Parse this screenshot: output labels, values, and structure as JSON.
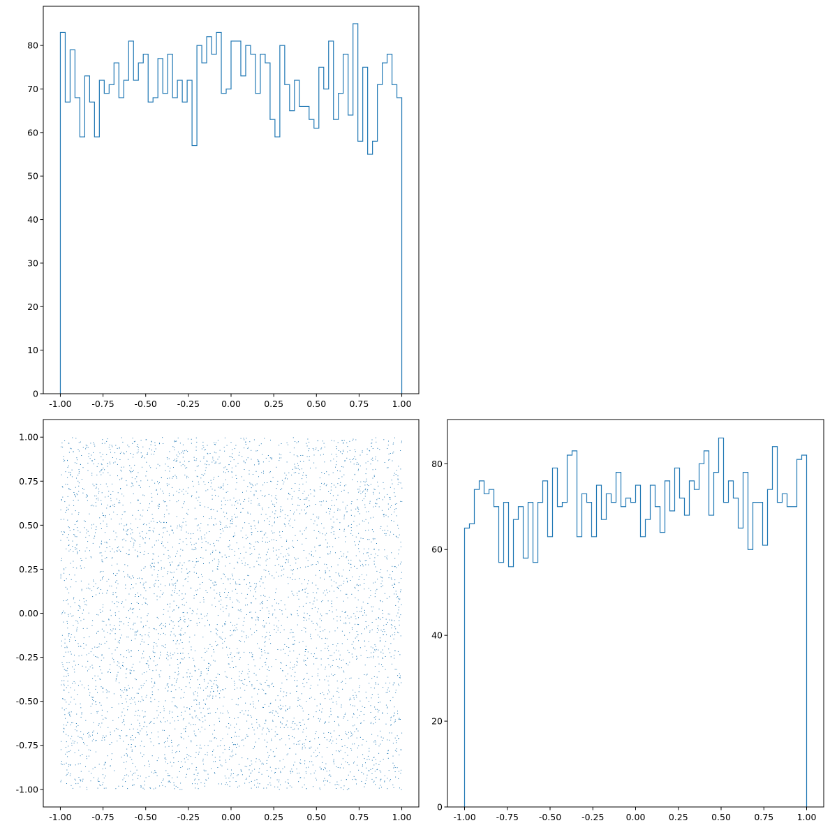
{
  "colors": {
    "series": "#1f77b4",
    "axes": "#000000",
    "background": "#ffffff"
  },
  "chart_data": [
    {
      "id": "top-left-histogram",
      "type": "histogram",
      "histtype": "step",
      "title": "",
      "xlabel": "",
      "ylabel": "",
      "xlim": [
        -1.1,
        1.1
      ],
      "ylim": [
        0,
        89
      ],
      "grid": false,
      "bin_range": [
        -1.0,
        1.0
      ],
      "counts": [
        83,
        67,
        79,
        68,
        59,
        73,
        67,
        59,
        72,
        69,
        71,
        76,
        68,
        72,
        81,
        72,
        76,
        78,
        67,
        68,
        77,
        69,
        78,
        68,
        72,
        67,
        72,
        57,
        80,
        76,
        82,
        78,
        83,
        69,
        70,
        81,
        81,
        73,
        80,
        78,
        69,
        78,
        76,
        63,
        59,
        80,
        71,
        65,
        72,
        66,
        66,
        63,
        61,
        75,
        70,
        81,
        63,
        69,
        78,
        64,
        85,
        58,
        75,
        55,
        58,
        71,
        76,
        78,
        71,
        68
      ],
      "xticks": [
        "-1.00",
        "-0.75",
        "-0.50",
        "-0.25",
        "0.00",
        "0.25",
        "0.50",
        "0.75",
        "1.00"
      ],
      "xtick_values": [
        -1.0,
        -0.75,
        -0.5,
        -0.25,
        0.0,
        0.25,
        0.5,
        0.75,
        1.0
      ],
      "yticks": [
        "0",
        "10",
        "20",
        "30",
        "40",
        "50",
        "60",
        "70",
        "80"
      ],
      "ytick_values": [
        0,
        10,
        20,
        30,
        40,
        50,
        60,
        70,
        80
      ]
    },
    {
      "id": "bottom-left-scatter",
      "type": "scatter",
      "title": "",
      "xlabel": "",
      "ylabel": "",
      "xlim": [
        -1.1,
        1.1
      ],
      "ylim": [
        -1.1,
        1.1
      ],
      "grid": false,
      "point_count": 5000,
      "x_range": [
        -1.0,
        1.0
      ],
      "y_range": [
        -1.0,
        1.0
      ],
      "marker": "pixel",
      "xticks": [
        "-1.00",
        "-0.75",
        "-0.50",
        "-0.25",
        "0.00",
        "0.25",
        "0.50",
        "0.75",
        "1.00"
      ],
      "xtick_values": [
        -1.0,
        -0.75,
        -0.5,
        -0.25,
        0.0,
        0.25,
        0.5,
        0.75,
        1.0
      ],
      "yticks": [
        "-1.00",
        "-0.75",
        "-0.50",
        "-0.25",
        "0.00",
        "0.25",
        "0.50",
        "0.75",
        "1.00"
      ],
      "ytick_values": [
        -1.0,
        -0.75,
        -0.5,
        -0.25,
        0.0,
        0.25,
        0.5,
        0.75,
        1.0
      ]
    },
    {
      "id": "bottom-right-histogram",
      "type": "histogram",
      "histtype": "step",
      "title": "",
      "xlabel": "",
      "ylabel": "",
      "xlim": [
        -1.1,
        1.1
      ],
      "ylim": [
        0,
        90.3
      ],
      "grid": false,
      "bin_range": [
        -1.0,
        1.0
      ],
      "counts": [
        65,
        66,
        74,
        76,
        73,
        74,
        70,
        57,
        71,
        56,
        67,
        70,
        58,
        71,
        57,
        71,
        76,
        63,
        79,
        70,
        71,
        82,
        83,
        63,
        73,
        71,
        63,
        75,
        67,
        73,
        71,
        78,
        70,
        72,
        71,
        75,
        63,
        67,
        75,
        70,
        64,
        76,
        69,
        79,
        72,
        68,
        76,
        74,
        80,
        83,
        68,
        78,
        86,
        71,
        76,
        72,
        65,
        78,
        60,
        71,
        71,
        61,
        74,
        84,
        71,
        73,
        70,
        70,
        81,
        82
      ],
      "xticks": [
        "-1.00",
        "-0.75",
        "-0.50",
        "-0.25",
        "0.00",
        "0.25",
        "0.50",
        "0.75",
        "1.00"
      ],
      "xtick_values": [
        -1.0,
        -0.75,
        -0.5,
        -0.25,
        0.0,
        0.25,
        0.5,
        0.75,
        1.0
      ],
      "yticks": [
        "0",
        "20",
        "40",
        "60",
        "80"
      ],
      "ytick_values": [
        0,
        20,
        40,
        60,
        80
      ]
    }
  ]
}
